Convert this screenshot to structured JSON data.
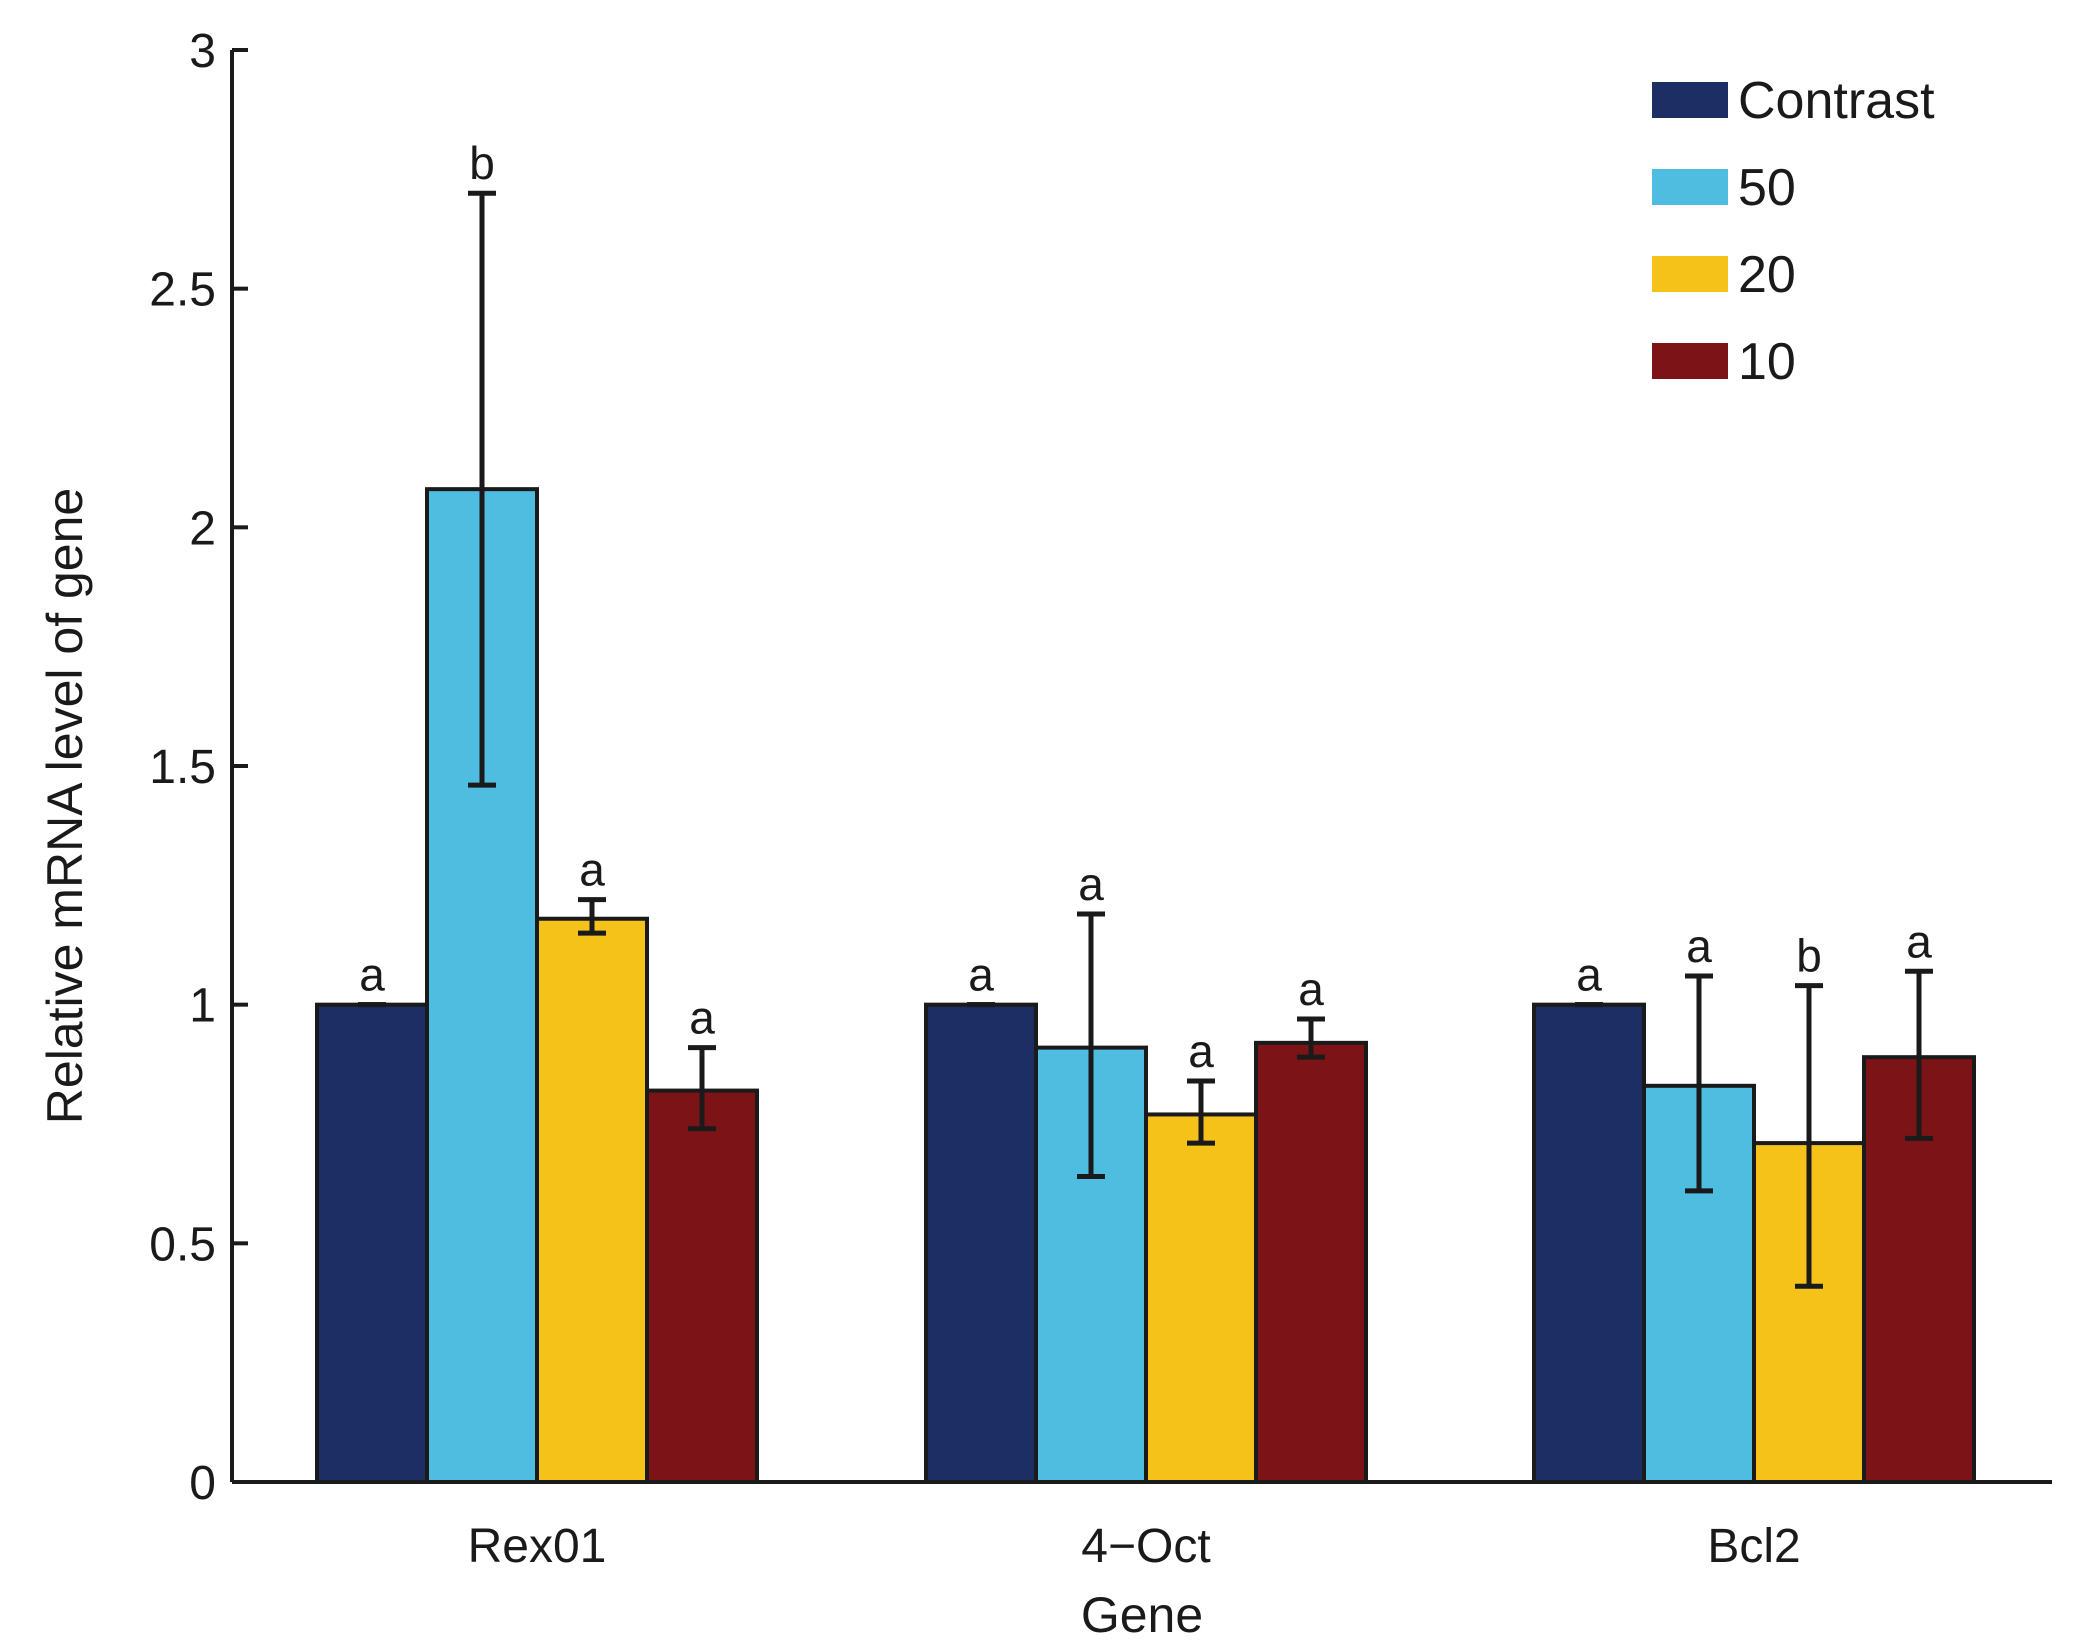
{
  "chart_data": {
    "type": "bar",
    "title": "",
    "xlabel": "Gene",
    "ylabel": "Relative mRNA level of gene",
    "ylim": [
      0,
      3
    ],
    "yticks": [
      0,
      0.5,
      1,
      1.5,
      2,
      2.5,
      3
    ],
    "ytick_labels": [
      "0",
      "0.5",
      "1",
      "1.5",
      "2",
      "2.5",
      "3"
    ],
    "categories": [
      "Rex01",
      "4−Oct",
      "Bcl2"
    ],
    "legend_position": "top-right",
    "grid": false,
    "series": [
      {
        "name": "Contrast",
        "color": "#1c2e64",
        "values": [
          1.0,
          1.0,
          1.0
        ],
        "err_low": [
          1.0,
          1.0,
          1.0
        ],
        "err_high": [
          1.0,
          1.0,
          1.0
        ],
        "labels": [
          "a",
          "a",
          "a"
        ]
      },
      {
        "name": "50",
        "color": "#4fbde0",
        "values": [
          2.08,
          0.91,
          0.83
        ],
        "err_low": [
          1.46,
          0.64,
          0.61
        ],
        "err_high": [
          2.7,
          1.19,
          1.06
        ],
        "labels": [
          "b",
          "a",
          "a"
        ]
      },
      {
        "name": "20",
        "color": "#f5c21a",
        "values": [
          1.18,
          0.77,
          0.71
        ],
        "err_low": [
          1.15,
          0.71,
          0.41
        ],
        "err_high": [
          1.22,
          0.84,
          1.04
        ],
        "labels": [
          "a",
          "a",
          "b"
        ]
      },
      {
        "name": "10",
        "color": "#7c1417",
        "values": [
          0.82,
          0.92,
          0.89
        ],
        "err_low": [
          0.74,
          0.89,
          0.72
        ],
        "err_high": [
          0.91,
          0.97,
          1.07
        ],
        "labels": [
          "a",
          "a",
          "a"
        ]
      }
    ]
  }
}
